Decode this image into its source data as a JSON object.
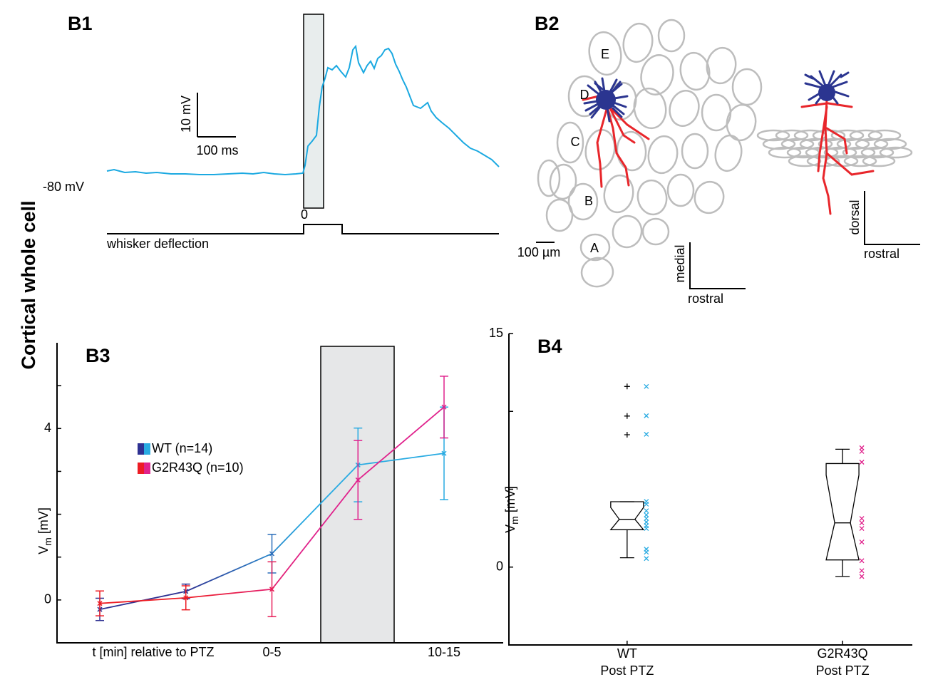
{
  "side_label": "Cortical whole cell",
  "b1": {
    "label": "B1",
    "scale_y": "10 mV",
    "scale_x": "100 ms",
    "baseline": "-80 mV",
    "stim_onset": "0",
    "stim_label": "whisker deflection"
  },
  "b2": {
    "label": "B2",
    "barrels": [
      "E",
      "D",
      "C",
      "B",
      "A"
    ],
    "scale": "100 µm",
    "top_view_axes": [
      "medial",
      "rostral"
    ],
    "side_view_axes": [
      "dorsal",
      "rostral"
    ]
  },
  "chart_data": [
    {
      "type": "line",
      "label": "B3",
      "ylabel": {
        "symbol": "V",
        "subscript": "m",
        "unit": "[mV]"
      },
      "xlabel": "t [min] relative to PTZ",
      "categories": [
        null,
        null,
        "0-5",
        null,
        "10-15"
      ],
      "ylim": [
        -1,
        6
      ],
      "yticks": [
        0,
        4
      ],
      "yminorticks": [
        1,
        2,
        3,
        5
      ],
      "series": [
        {
          "name": "WT (n=14)",
          "color_start": "#2e3192",
          "color": "#29abe2",
          "values": [
            -0.22,
            0.2,
            1.08,
            3.15,
            3.42
          ],
          "errors": [
            0.26,
            0.17,
            0.45,
            0.86,
            1.08
          ]
        },
        {
          "name": "G2R43Q (n=10)",
          "color_start": "#ed1c24",
          "color": "#e0228c",
          "values": [
            -0.08,
            0.05,
            0.25,
            2.8,
            4.5
          ],
          "errors": [
            0.29,
            0.28,
            0.64,
            0.92,
            0.72
          ]
        }
      ]
    },
    {
      "type": "box",
      "label": "B4",
      "ylabel": {
        "symbol": "V",
        "subscript": "m",
        "unit": "[mV]"
      },
      "categories": [
        "WT",
        "G2R43Q"
      ],
      "category_sublabels": [
        "Post PTZ",
        "Post PTZ"
      ],
      "ylim": [
        -5,
        15
      ],
      "yticks": [
        0,
        15
      ],
      "yminorticks": [
        5,
        10
      ],
      "series": [
        {
          "color": "#29abe2",
          "whislo": 0.6,
          "q1": 2.4,
          "med": 3.07,
          "q3": 4.2,
          "whishi": 4.2,
          "fliers": [
            8.5,
            9.7,
            11.6
          ],
          "points": [
            11.6,
            9.72,
            8.53,
            4.22,
            4.04,
            3.62,
            3.35,
            3.12,
            2.89,
            2.66,
            2.48,
            1.15,
            0.96,
            0.55
          ]
        },
        {
          "color": "#e0228c",
          "whislo": -0.6,
          "q1": 0.46,
          "med": 2.84,
          "q3": 6.65,
          "whishi": 7.57,
          "fliers": [],
          "points": [
            7.66,
            7.43,
            6.74,
            3.12,
            2.84,
            2.48,
            1.61,
            0.41,
            -0.23,
            -0.6
          ]
        }
      ]
    }
  ]
}
